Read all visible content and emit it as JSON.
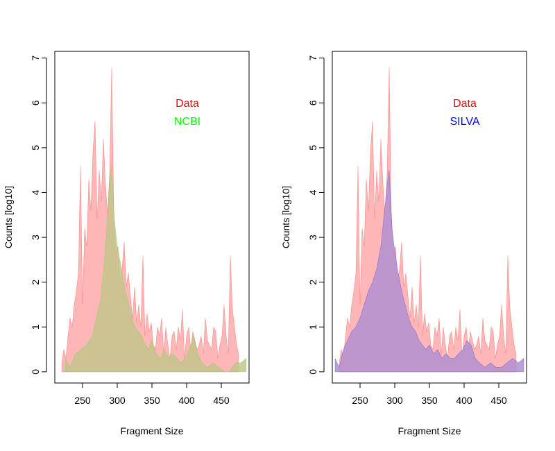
{
  "chart_data": [
    {
      "type": "area",
      "xlabel": "Fragment Size",
      "ylabel": "Counts [log10]",
      "xlim": [
        210,
        490
      ],
      "ylim": [
        -0.25,
        7.15
      ],
      "xticks": [
        250,
        300,
        350,
        400,
        450
      ],
      "yticks": [
        0,
        1,
        2,
        3,
        4,
        5,
        6,
        7
      ],
      "grid": false,
      "legend_position": "top-right",
      "series": [
        {
          "name": "Data",
          "color": "#FF0000",
          "fill": "#FFB6B6",
          "x": [
            220,
            223,
            226,
            229,
            232,
            235,
            238,
            241,
            244,
            247,
            250,
            253,
            256,
            259,
            262,
            265,
            268,
            271,
            274,
            277,
            280,
            283,
            286,
            289,
            292,
            295,
            298,
            301,
            304,
            307,
            310,
            313,
            316,
            319,
            322,
            325,
            328,
            331,
            334,
            337,
            340,
            343,
            346,
            349,
            352,
            355,
            358,
            361,
            364,
            367,
            370,
            373,
            376,
            379,
            382,
            385,
            388,
            391,
            394,
            397,
            400,
            403,
            406,
            409,
            412,
            415,
            418,
            421,
            424,
            427,
            430,
            433,
            436,
            439,
            442,
            445,
            448,
            451,
            454,
            457,
            460,
            463,
            466,
            469,
            472,
            475
          ],
          "values": [
            0.2,
            0.5,
            0.3,
            0.8,
            1.2,
            1.0,
            1.5,
            1.8,
            2.2,
            4.6,
            1.5,
            3.2,
            2.8,
            4.3,
            3.6,
            4.9,
            5.6,
            3.4,
            4.5,
            3.8,
            5.2,
            4.2,
            3.5,
            4.4,
            6.8,
            3.6,
            2.6,
            2.8,
            2.0,
            2.3,
            2.9,
            1.9,
            2.2,
            1.7,
            1.2,
            1.9,
            1.1,
            1.5,
            1.0,
            2.6,
            0.8,
            1.3,
            0.9,
            1.1,
            0.6,
            0.5,
            1.0,
            0.8,
            1.2,
            0.4,
            1.0,
            0.6,
            0.3,
            0.8,
            0.9,
            0.5,
            1.0,
            0.7,
            1.4,
            0.3,
            0.8,
            1.0,
            0.5,
            0.9,
            0.7,
            0.5,
            0.6,
            0.8,
            0.4,
            1.2,
            0.7,
            0.6,
            0.5,
            1.0,
            0.9,
            0.3,
            0.6,
            0.8,
            1.5,
            0.8,
            0.4,
            2.6,
            1.4,
            1.0,
            0.6,
            0.4
          ]
        },
        {
          "name": "NCBI",
          "color": "#00FF00",
          "fill": "#C4C48C",
          "x": [
            225,
            232,
            240,
            248,
            256,
            264,
            270,
            276,
            280,
            284,
            288,
            290,
            292,
            294,
            296,
            300,
            305,
            310,
            315,
            320,
            325,
            330,
            335,
            340,
            345,
            350,
            356,
            362,
            368,
            374,
            380,
            386,
            392,
            398,
            404,
            410,
            416,
            422,
            430,
            438,
            446,
            454,
            462,
            470,
            478,
            486
          ],
          "values": [
            0.3,
            0.1,
            0.4,
            0.5,
            0.6,
            0.8,
            1.2,
            1.6,
            2.2,
            3.0,
            4.0,
            4.4,
            4.6,
            3.9,
            3.4,
            2.8,
            2.4,
            1.9,
            1.6,
            1.3,
            1.0,
            0.9,
            0.8,
            0.6,
            0.5,
            0.7,
            0.4,
            0.3,
            0.5,
            0.3,
            0.4,
            0.3,
            0.2,
            0.3,
            0.5,
            0.8,
            0.4,
            0.2,
            0.1,
            0.2,
            0.1,
            0.0,
            0.0,
            0.2,
            0.2,
            0.3
          ]
        }
      ]
    },
    {
      "type": "area",
      "xlabel": "Fragment Size",
      "ylabel": "Counts [log10]",
      "xlim": [
        210,
        490
      ],
      "ylim": [
        -0.25,
        7.15
      ],
      "xticks": [
        250,
        300,
        350,
        400,
        450
      ],
      "yticks": [
        0,
        1,
        2,
        3,
        4,
        5,
        6,
        7
      ],
      "grid": false,
      "legend_position": "top-right",
      "series": [
        {
          "name": "Data",
          "color": "#FF0000",
          "fill": "#FFB6B6",
          "x": [
            220,
            223,
            226,
            229,
            232,
            235,
            238,
            241,
            244,
            247,
            250,
            253,
            256,
            259,
            262,
            265,
            268,
            271,
            274,
            277,
            280,
            283,
            286,
            289,
            292,
            295,
            298,
            301,
            304,
            307,
            310,
            313,
            316,
            319,
            322,
            325,
            328,
            331,
            334,
            337,
            340,
            343,
            346,
            349,
            352,
            355,
            358,
            361,
            364,
            367,
            370,
            373,
            376,
            379,
            382,
            385,
            388,
            391,
            394,
            397,
            400,
            403,
            406,
            409,
            412,
            415,
            418,
            421,
            424,
            427,
            430,
            433,
            436,
            439,
            442,
            445,
            448,
            451,
            454,
            457,
            460,
            463,
            466,
            469,
            472,
            475
          ],
          "values": [
            0.2,
            0.5,
            0.3,
            0.8,
            1.2,
            1.0,
            1.5,
            1.8,
            2.2,
            4.6,
            1.5,
            3.2,
            2.8,
            4.3,
            3.6,
            4.9,
            5.6,
            3.4,
            4.5,
            3.8,
            5.2,
            4.2,
            3.5,
            4.4,
            6.8,
            3.6,
            2.6,
            2.8,
            2.0,
            2.3,
            2.9,
            1.9,
            2.2,
            1.7,
            1.2,
            1.9,
            1.1,
            1.5,
            1.0,
            2.6,
            0.8,
            1.3,
            0.9,
            1.1,
            0.6,
            0.5,
            1.0,
            0.8,
            1.2,
            0.4,
            1.0,
            0.6,
            0.3,
            0.8,
            0.9,
            0.5,
            1.0,
            0.7,
            1.4,
            0.3,
            0.8,
            1.0,
            0.5,
            0.9,
            0.7,
            0.5,
            0.6,
            0.8,
            0.4,
            1.2,
            0.7,
            0.6,
            0.5,
            1.0,
            0.9,
            0.3,
            0.6,
            0.8,
            1.5,
            0.8,
            0.4,
            2.6,
            1.4,
            1.0,
            0.6,
            0.4
          ]
        },
        {
          "name": "SILVA",
          "color": "#0000FF",
          "fill": "#B090D0",
          "x": [
            214,
            220,
            226,
            232,
            238,
            244,
            250,
            256,
            262,
            268,
            274,
            280,
            284,
            288,
            290,
            292,
            294,
            296,
            300,
            305,
            310,
            315,
            320,
            325,
            330,
            335,
            340,
            345,
            350,
            356,
            362,
            368,
            374,
            380,
            386,
            392,
            398,
            404,
            410,
            416,
            422,
            430,
            438,
            446,
            454,
            462,
            470,
            478,
            486
          ],
          "values": [
            0.3,
            0.1,
            0.5,
            0.7,
            0.9,
            1.0,
            1.2,
            1.5,
            1.8,
            2.0,
            2.3,
            2.8,
            3.4,
            4.0,
            4.3,
            4.5,
            3.8,
            3.2,
            2.7,
            2.2,
            1.8,
            1.5,
            1.2,
            1.0,
            0.9,
            0.7,
            0.6,
            0.5,
            0.6,
            0.4,
            0.5,
            0.3,
            0.4,
            0.3,
            0.3,
            0.4,
            0.5,
            0.7,
            0.6,
            0.3,
            0.2,
            0.1,
            0.2,
            0.1,
            0.1,
            0.2,
            0.3,
            0.2,
            0.3
          ]
        }
      ]
    }
  ]
}
